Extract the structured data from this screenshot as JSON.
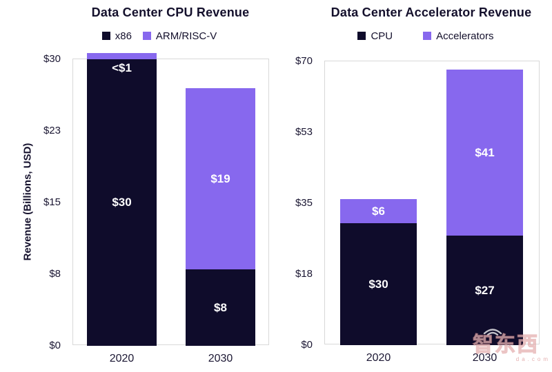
{
  "colors": {
    "dark": "#0f0c2b",
    "purple": "#8768ee",
    "text": "#14102c",
    "border": "#d8d8d8",
    "label_on_bar": "#ffffff"
  },
  "y_axis_title": "Revenue (Billions, USD)",
  "chart_data": [
    {
      "type": "bar",
      "stacked": true,
      "title": "Data Center CPU Revenue",
      "categories": [
        "2020",
        "2030"
      ],
      "ylim": [
        0,
        30
      ],
      "grid": false,
      "legend_position": "top",
      "yticks": [
        {
          "label": "$0",
          "value": 0
        },
        {
          "label": "$8",
          "value": 7.5
        },
        {
          "label": "$15",
          "value": 15
        },
        {
          "label": "$23",
          "value": 22.5
        },
        {
          "label": "$30",
          "value": 30
        }
      ],
      "series": [
        {
          "name": "x86",
          "color_key": "dark",
          "values": [
            30,
            8
          ],
          "labels": [
            "$30",
            "$8"
          ]
        },
        {
          "name": "ARM/RISC-V",
          "color_key": "purple",
          "values": [
            0.5,
            19
          ],
          "labels": [
            "<$1",
            "$19"
          ]
        }
      ]
    },
    {
      "type": "bar",
      "stacked": true,
      "title": "Data Center Accelerator Revenue",
      "categories": [
        "2020",
        "2030"
      ],
      "ylim": [
        0,
        70
      ],
      "grid": false,
      "legend_position": "top",
      "yticks": [
        {
          "label": "$0",
          "value": 0
        },
        {
          "label": "$18",
          "value": 17.5
        },
        {
          "label": "$35",
          "value": 35
        },
        {
          "label": "$53",
          "value": 52.5
        },
        {
          "label": "$70",
          "value": 70
        }
      ],
      "series": [
        {
          "name": "CPU",
          "color_key": "dark",
          "values": [
            30,
            27
          ],
          "labels": [
            "$30",
            "$27"
          ]
        },
        {
          "name": "Accelerators",
          "color_key": "purple",
          "values": [
            6,
            41
          ],
          "labels": [
            "$6",
            "$41"
          ]
        }
      ]
    }
  ],
  "watermark": {
    "text": "智东西",
    "subtext": "da.com"
  }
}
